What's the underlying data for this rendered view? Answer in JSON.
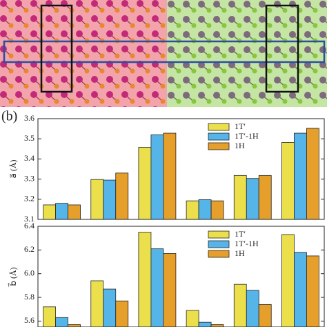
{
  "chart_data": [
    {
      "type": "bar",
      "panel_label": "(b)",
      "ylabel": "a⃗ (Å)",
      "categories": [
        null,
        null,
        null,
        null,
        null,
        null
      ],
      "series": [
        {
          "name": "1T′",
          "color": "#ebe04c",
          "values": [
            3.172,
            3.298,
            3.458,
            3.192,
            3.318,
            3.482
          ]
        },
        {
          "name": "1T′-1H",
          "color": "#55b5e8",
          "values": [
            3.18,
            3.295,
            3.52,
            3.198,
            3.303,
            3.528
          ]
        },
        {
          "name": "1H",
          "color": "#e59f2a",
          "values": [
            3.172,
            3.33,
            3.528,
            3.192,
            3.318,
            3.552
          ]
        }
      ],
      "ylim": [
        3.1,
        3.6
      ],
      "yticks": [
        3.1,
        3.2,
        3.3,
        3.4,
        3.5,
        3.6
      ],
      "legend": "top-right"
    },
    {
      "type": "bar",
      "ylabel": "b⃗ (Å)",
      "categories": [
        null,
        null,
        null,
        null,
        null,
        null
      ],
      "series": [
        {
          "name": "1T′",
          "color": "#ebe04c",
          "values": [
            5.72,
            5.94,
            6.35,
            5.69,
            5.91,
            6.33
          ]
        },
        {
          "name": "1T′-1H",
          "color": "#55b5e8",
          "values": [
            5.63,
            5.87,
            6.21,
            5.59,
            5.86,
            6.18
          ]
        },
        {
          "name": "1H",
          "color": "#e59f2a",
          "values": [
            5.57,
            5.77,
            6.17,
            5.57,
            5.74,
            6.15
          ]
        }
      ],
      "ylim": [
        5.55,
        6.4
      ],
      "yticks": [
        5.6,
        5.8,
        {
          "value": 6,
          "label": "6.0"
        },
        6.2,
        6.4
      ],
      "legend": "top-right"
    }
  ]
}
